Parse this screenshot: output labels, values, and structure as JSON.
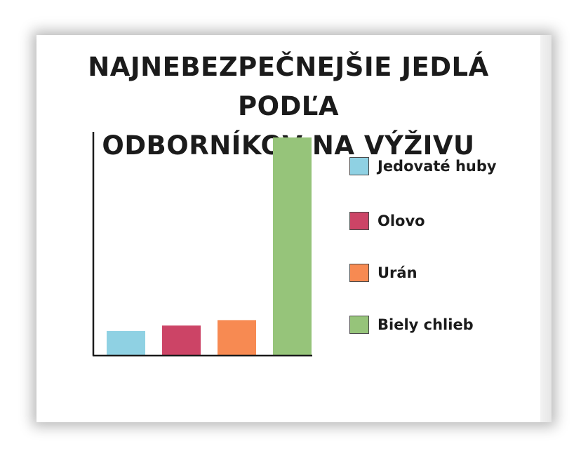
{
  "chart_data": {
    "type": "bar",
    "title_lines": [
      "NAJNEBEZPEČNEJŠIE JEDLÁ PODĽA",
      "ODBORNÍKOV NA VÝŽIVU"
    ],
    "categories": [
      "Jedovaté huby",
      "Olovo",
      "Urán",
      "Biely chlieb"
    ],
    "values": [
      11,
      13.5,
      16,
      100
    ],
    "colors": [
      "#8fd1e3",
      "#cc4466",
      "#f78a52",
      "#96c47a"
    ],
    "xlabel": "",
    "ylabel": "",
    "ylim": [
      0,
      100
    ],
    "grid": false,
    "legend_position": "right"
  }
}
